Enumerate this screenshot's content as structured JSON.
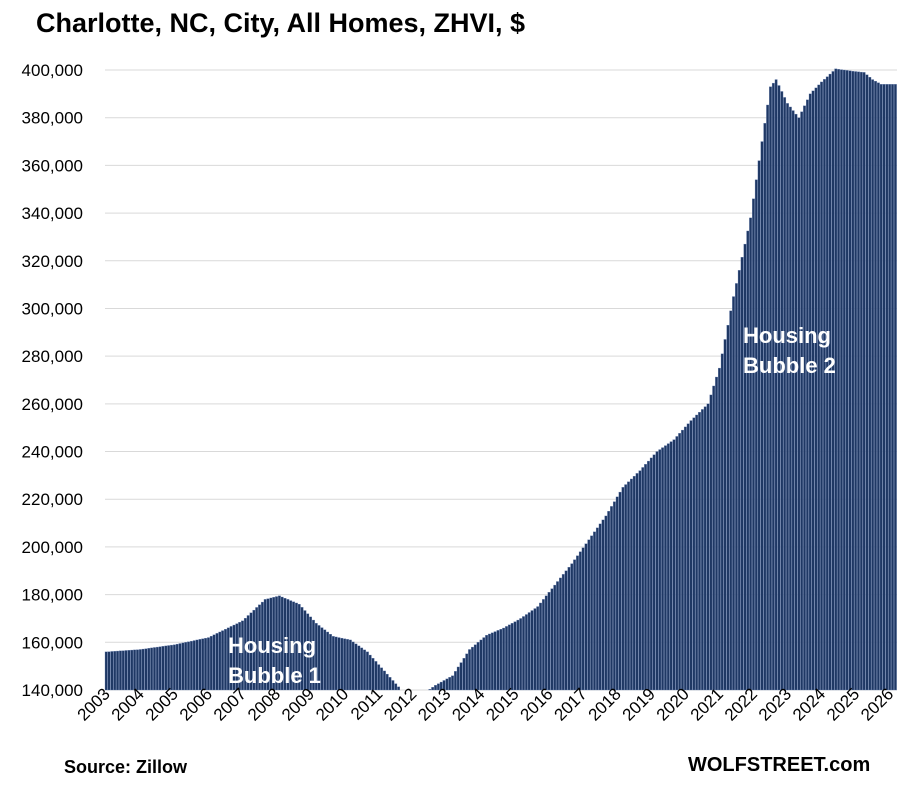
{
  "chart_data": {
    "type": "bar",
    "title": "Charlotte, NC, City, All Homes, ZHVI, $",
    "source": "Source: Zillow",
    "credit": "WOLFSTREET.com",
    "ylim": [
      140000,
      400000
    ],
    "y_ticks": [
      "140,000",
      "160,000",
      "180,000",
      "200,000",
      "220,000",
      "240,000",
      "260,000",
      "280,000",
      "300,000",
      "320,000",
      "340,000",
      "360,000",
      "380,000",
      "400,000"
    ],
    "x_ticks": [
      "2003",
      "2004",
      "2005",
      "2006",
      "2007",
      "2008",
      "2009",
      "2010",
      "2011",
      "2012",
      "2013",
      "2014",
      "2015",
      "2016",
      "2017",
      "2018",
      "2019",
      "2020",
      "2021",
      "2022",
      "2023",
      "2024",
      "2025",
      "2026"
    ],
    "grid": true,
    "bar_color": "#1f3864",
    "annotations": [
      {
        "line1": "Housing",
        "line2": "Bubble 1",
        "at": "2007"
      },
      {
        "line1": "Housing",
        "line2": "Bubble 2",
        "at": "2021"
      }
    ],
    "series": [
      {
        "points": [
          [
            "2003-01",
            156000
          ],
          [
            "2004-01",
            157000
          ],
          [
            "2005-01",
            159000
          ],
          [
            "2006-01",
            162000
          ],
          [
            "2007-01",
            169000
          ],
          [
            "2007-09",
            178000
          ],
          [
            "2008-02",
            179500
          ],
          [
            "2008-09",
            176000
          ],
          [
            "2009-03",
            168000
          ],
          [
            "2009-09",
            162500
          ],
          [
            "2010-03",
            161000
          ],
          [
            "2010-09",
            156000
          ],
          [
            "2011-03",
            148000
          ],
          [
            "2011-09",
            140000
          ],
          [
            "2012-03",
            137000
          ],
          [
            "2012-09",
            142000
          ],
          [
            "2013-03",
            146000
          ],
          [
            "2013-09",
            157000
          ],
          [
            "2014-03",
            163000
          ],
          [
            "2014-09",
            166000
          ],
          [
            "2015-03",
            170000
          ],
          [
            "2015-09",
            175000
          ],
          [
            "2016-03",
            184000
          ],
          [
            "2016-09",
            193000
          ],
          [
            "2017-03",
            203000
          ],
          [
            "2017-09",
            213000
          ],
          [
            "2018-03",
            225000
          ],
          [
            "2018-09",
            232000
          ],
          [
            "2019-03",
            240000
          ],
          [
            "2019-09",
            245000
          ],
          [
            "2020-03",
            253000
          ],
          [
            "2020-09",
            260000
          ],
          [
            "2021-01",
            275000
          ],
          [
            "2021-06",
            305000
          ],
          [
            "2021-12",
            338000
          ],
          [
            "2022-04",
            370000
          ],
          [
            "2022-07",
            393000
          ],
          [
            "2022-09",
            396000
          ],
          [
            "2023-01",
            386000
          ],
          [
            "2023-05",
            380000
          ],
          [
            "2023-09",
            390000
          ],
          [
            "2024-01",
            395000
          ],
          [
            "2024-06",
            400500
          ],
          [
            "2024-12",
            399500
          ],
          [
            "2025-04",
            399000
          ],
          [
            "2025-07",
            396000
          ],
          [
            "2025-10",
            394000
          ],
          [
            "2026-02",
            394000
          ]
        ]
      }
    ]
  }
}
